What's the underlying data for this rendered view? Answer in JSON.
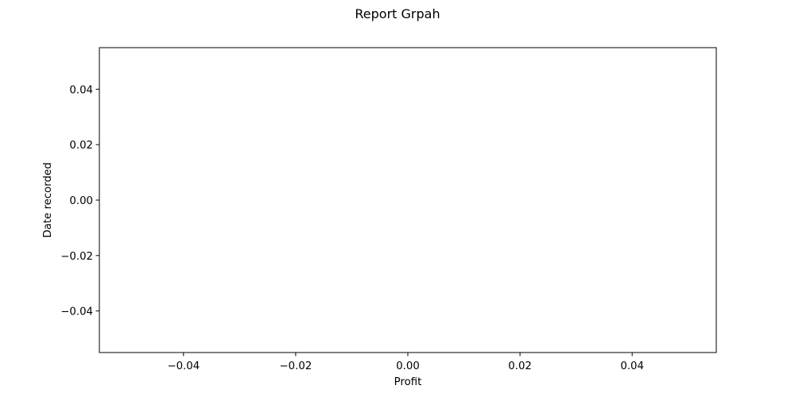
{
  "chart_data": {
    "type": "line",
    "title": "Report Grpah",
    "xlabel": "Profit",
    "ylabel": "Date recorded",
    "xlim": [
      -0.055,
      0.055
    ],
    "ylim": [
      -0.055,
      0.055
    ],
    "xticks": [
      -0.04,
      -0.02,
      0.0,
      0.02,
      0.04
    ],
    "xtick_labels": [
      "−0.04",
      "−0.02",
      "0.00",
      "0.02",
      "0.04"
    ],
    "yticks": [
      0.04,
      0.02,
      0.0,
      -0.02,
      -0.04
    ],
    "ytick_labels": [
      "0.04",
      "0.02",
      "0.00",
      "−0.02",
      "−0.04"
    ],
    "grid": false,
    "series": [
      {
        "x": [],
        "y": []
      }
    ]
  },
  "colors": {
    "axes": "#000000",
    "background": "#ffffff"
  }
}
